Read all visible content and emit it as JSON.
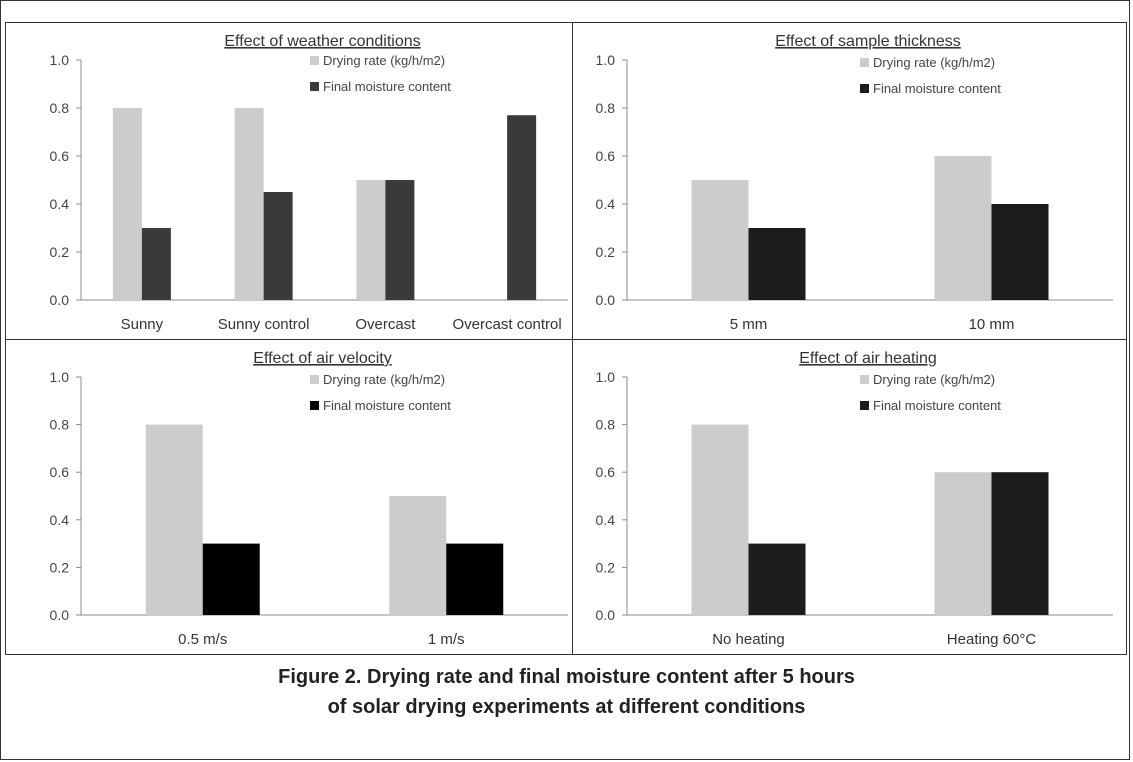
{
  "chart_data": [
    {
      "type": "bar",
      "title": "Effect of weather conditions",
      "categories": [
        "Sunny",
        "Sunny control",
        "Overcast",
        "Overcast control"
      ],
      "series": [
        {
          "name": "Drying rate (kg/h/m2)",
          "values": [
            0.8,
            0.8,
            0.5,
            null
          ],
          "color": "#cccccc"
        },
        {
          "name": "Final moisture content",
          "values": [
            0.3,
            0.45,
            0.5,
            0.77
          ],
          "color": "#3a3a3a"
        }
      ],
      "ylim": [
        0,
        1.0
      ],
      "yticks": [
        "0.0",
        "0.2",
        "0.4",
        "0.6",
        "0.8",
        "1.0"
      ],
      "grid": false,
      "legend": "top-right"
    },
    {
      "type": "bar",
      "title": "Effect of sample thickness",
      "categories": [
        "5 mm",
        "10 mm"
      ],
      "series": [
        {
          "name": "Drying rate (kg/h/m2)",
          "values": [
            0.5,
            0.6
          ],
          "color": "#cccccc"
        },
        {
          "name": "Final moisture content",
          "values": [
            0.3,
            0.4
          ],
          "color": "#1c1c1c"
        }
      ],
      "ylim": [
        0,
        1.0
      ],
      "yticks": [
        "0.0",
        "0.2",
        "0.4",
        "0.6",
        "0.8",
        "1.0"
      ],
      "grid": false,
      "legend": "top-right"
    },
    {
      "type": "bar",
      "title": "Effect of air velocity",
      "categories": [
        "0.5 m/s",
        "1 m/s"
      ],
      "series": [
        {
          "name": "Drying rate (kg/h/m2)",
          "values": [
            0.8,
            0.5
          ],
          "color": "#cccccc"
        },
        {
          "name": "Final moisture content",
          "values": [
            0.3,
            0.3
          ],
          "color": "#000000"
        }
      ],
      "ylim": [
        0,
        1.0
      ],
      "yticks": [
        "0.0",
        "0.2",
        "0.4",
        "0.6",
        "0.8",
        "1.0"
      ],
      "grid": false,
      "legend": "top-right"
    },
    {
      "type": "bar",
      "title": "Effect of air heating",
      "categories": [
        "No heating",
        "Heating 60°C"
      ],
      "series": [
        {
          "name": "Drying rate (kg/h/m2)",
          "values": [
            0.8,
            0.6
          ],
          "color": "#cccccc"
        },
        {
          "name": "Final moisture content",
          "values": [
            0.3,
            0.6
          ],
          "color": "#1c1c1c"
        }
      ],
      "ylim": [
        0,
        1.0
      ],
      "yticks": [
        "0.0",
        "0.2",
        "0.4",
        "0.6",
        "0.8",
        "1.0"
      ],
      "grid": false,
      "legend": "top-right"
    }
  ],
  "caption": {
    "line1": "Figure 2. Drying rate and final moisture content after 5 hours",
    "line2": "of solar drying experiments at different conditions"
  }
}
